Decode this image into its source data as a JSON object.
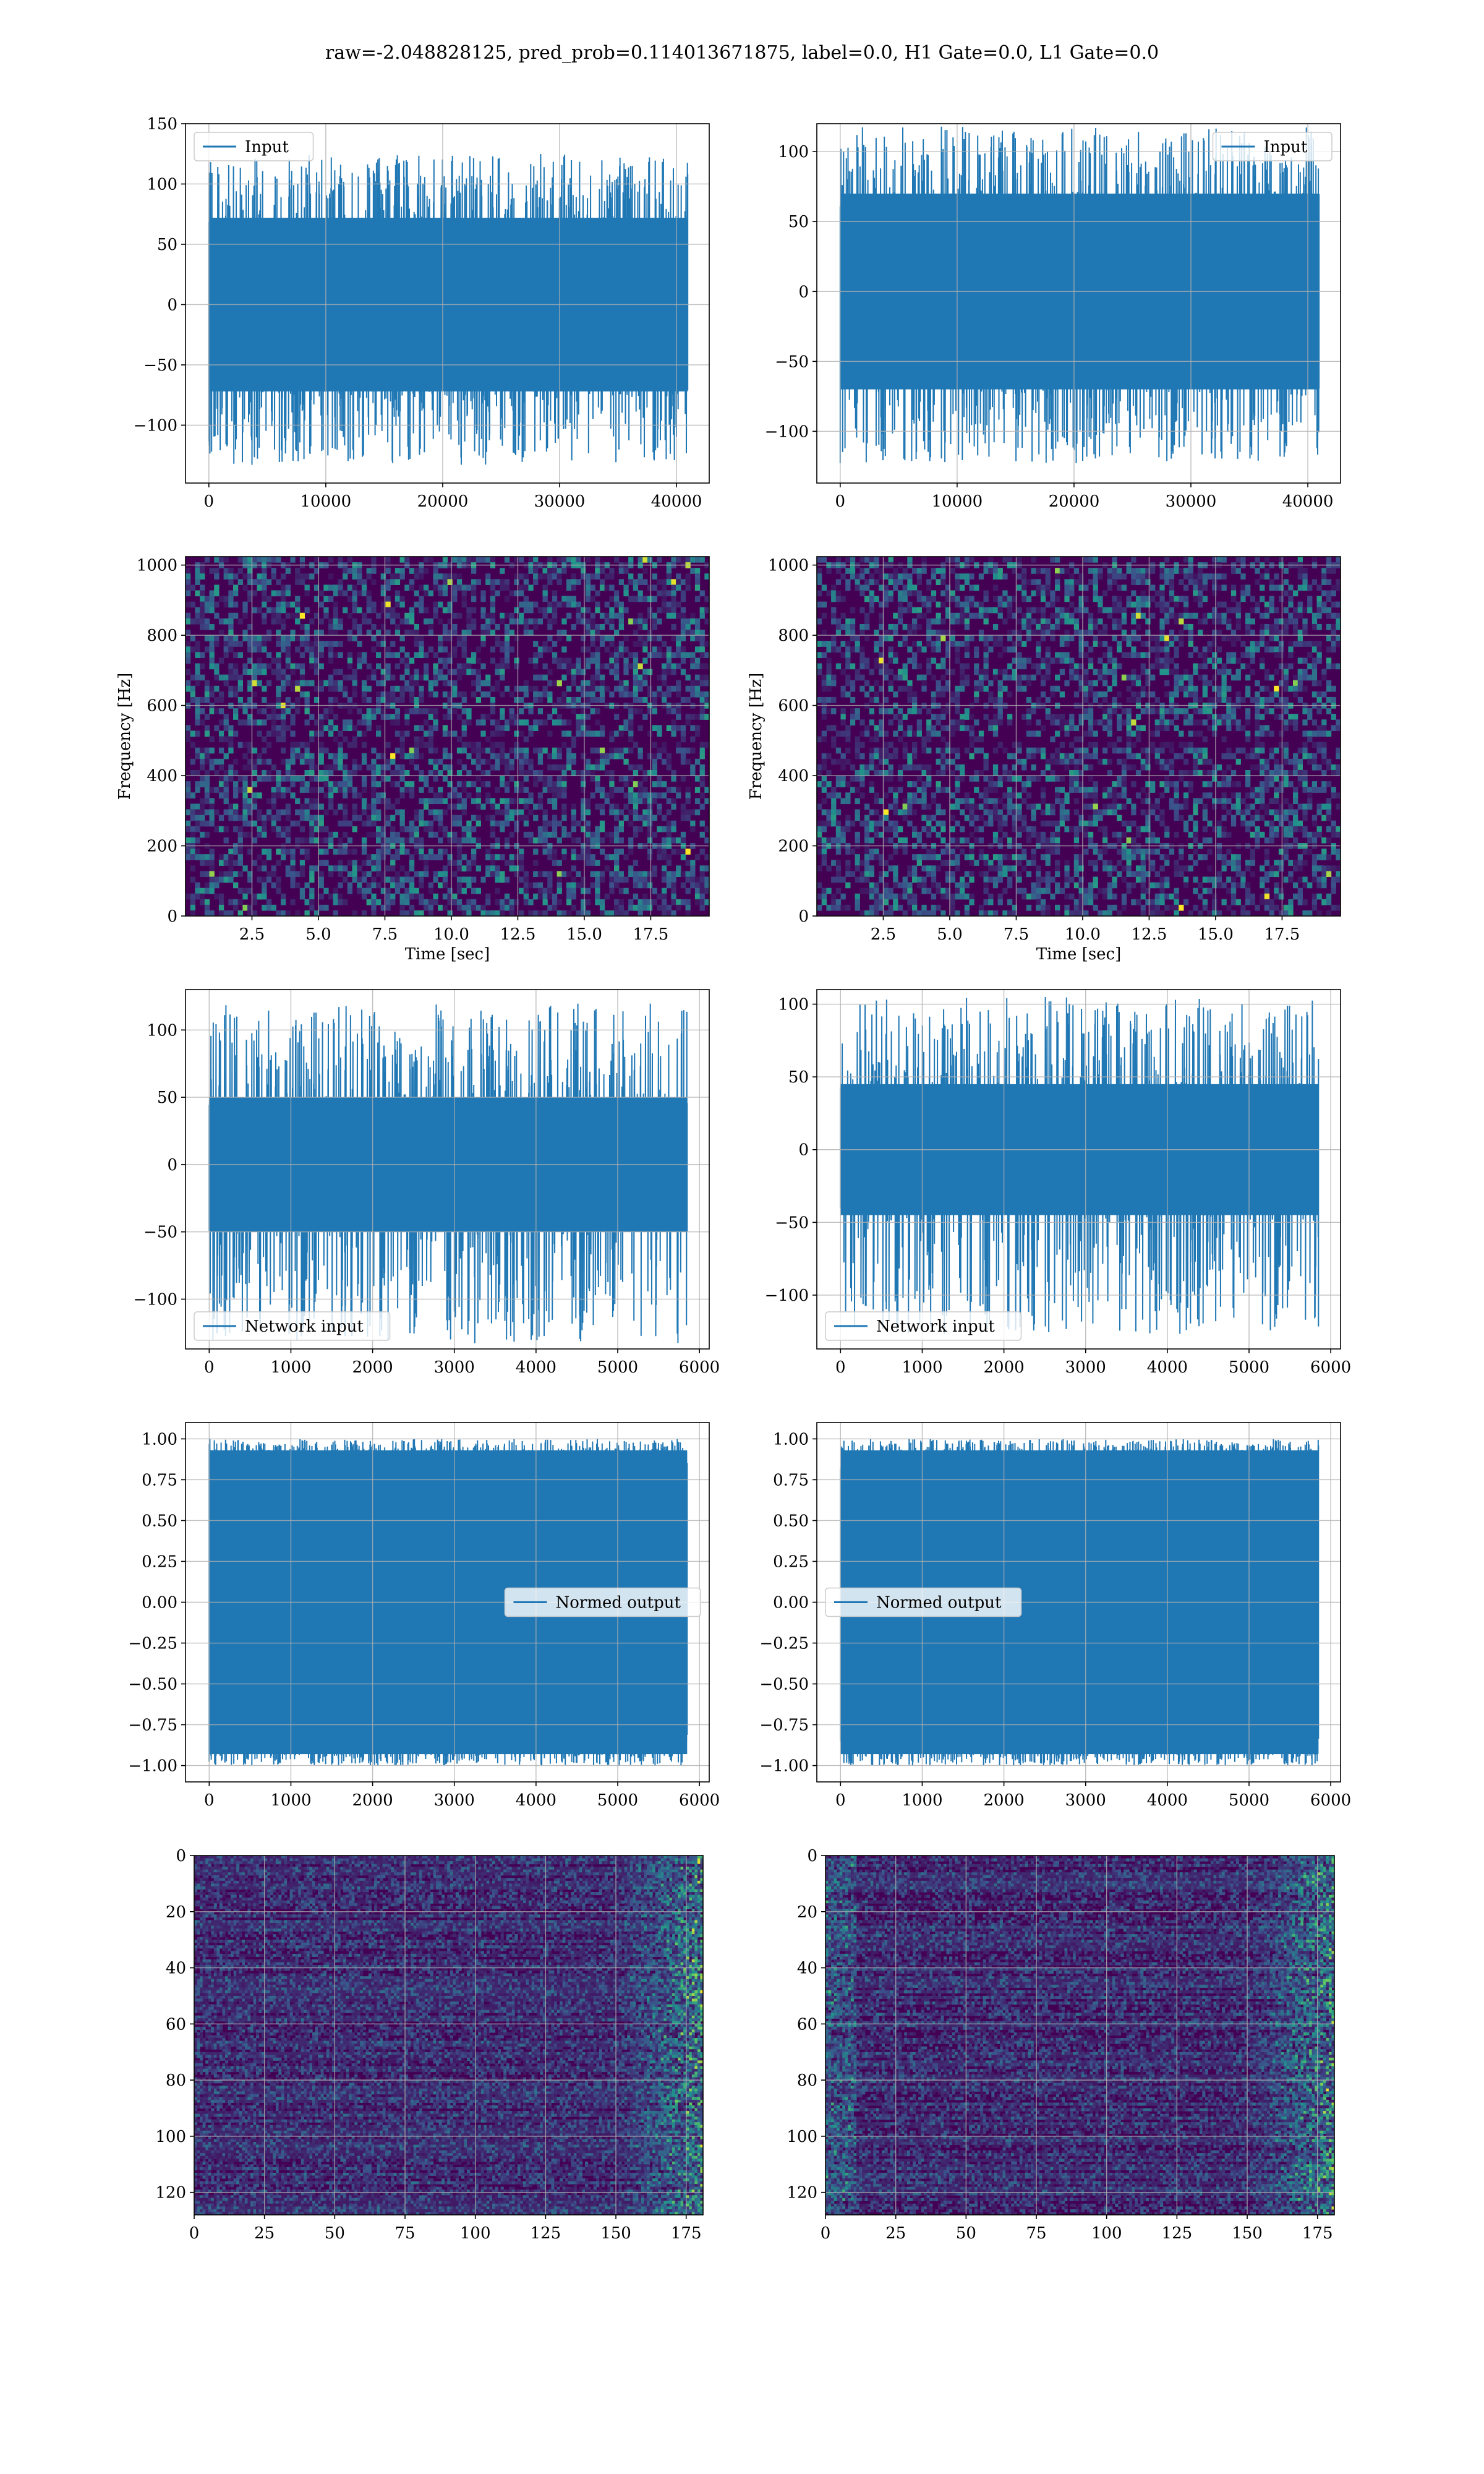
{
  "title": "raw=-2.048828125, pred_prob=0.114013671875, label=0.0, H1 Gate=0.0, L1 Gate=0.0",
  "colors": {
    "series": "#1f77b4",
    "grid": "#b0b0b0",
    "viridis_low": "#440154",
    "viridis_mid": "#21908d",
    "viridis_high": "#fde725"
  },
  "chart_data": [
    {
      "id": "input-left",
      "type": "line",
      "legend": "Input",
      "legend_loc": "upper left",
      "xlim": [
        -2000,
        42800
      ],
      "ylim": [
        -148,
        150
      ],
      "xticks": [
        0,
        10000,
        20000,
        30000,
        40000
      ],
      "yticks": [
        -100,
        -50,
        0,
        50,
        100,
        150
      ],
      "x_range": [
        0,
        40960
      ],
      "envelope": {
        "core": 72,
        "spike_max": 125,
        "spike_min": -133
      },
      "xlabel": "",
      "ylabel": "",
      "grid": true
    },
    {
      "id": "input-right",
      "type": "line",
      "legend": "Input",
      "legend_loc": "upper right",
      "xlim": [
        -2000,
        42800
      ],
      "ylim": [
        -137,
        120
      ],
      "xticks": [
        0,
        10000,
        20000,
        30000,
        40000
      ],
      "yticks": [
        -100,
        -50,
        0,
        50,
        100
      ],
      "x_range": [
        0,
        40960
      ],
      "envelope": {
        "core": 70,
        "spike_max": 118,
        "spike_min": -123
      },
      "xlabel": "",
      "ylabel": "",
      "grid": true
    },
    {
      "id": "spectrogram-left",
      "type": "heatmap",
      "colormap": "viridis",
      "xlim": [
        0,
        19.7
      ],
      "ylim": [
        0,
        1024
      ],
      "xticks": [
        2.5,
        5.0,
        7.5,
        10.0,
        12.5,
        15.0,
        17.5
      ],
      "yticks": [
        0,
        200,
        400,
        600,
        800,
        1000
      ],
      "xlabel": "Time [sec]",
      "ylabel": "Frequency [Hz]",
      "grid": true
    },
    {
      "id": "spectrogram-right",
      "type": "heatmap",
      "colormap": "viridis",
      "xlim": [
        0,
        19.7
      ],
      "ylim": [
        0,
        1024
      ],
      "xticks": [
        2.5,
        5.0,
        7.5,
        10.0,
        12.5,
        15.0,
        17.5
      ],
      "yticks": [
        0,
        200,
        400,
        600,
        800,
        1000
      ],
      "xlabel": "Time [sec]",
      "ylabel": "Frequency [Hz]",
      "grid": true
    },
    {
      "id": "network-input-left",
      "type": "line",
      "legend": "Network input",
      "legend_loc": "lower left",
      "xlim": [
        -290,
        6120
      ],
      "ylim": [
        -137,
        130
      ],
      "xticks": [
        0,
        1000,
        2000,
        3000,
        4000,
        5000,
        6000
      ],
      "yticks": [
        -100,
        -50,
        0,
        50,
        100
      ],
      "x_range": [
        0,
        5850
      ],
      "envelope": {
        "core": 50,
        "spike_max": 120,
        "spike_min": -133
      },
      "xlabel": "",
      "ylabel": "",
      "grid": true
    },
    {
      "id": "network-input-right",
      "type": "line",
      "legend": "Network input",
      "legend_loc": "lower left",
      "xlim": [
        -290,
        6120
      ],
      "ylim": [
        -137,
        110
      ],
      "xticks": [
        0,
        1000,
        2000,
        3000,
        4000,
        5000,
        6000
      ],
      "yticks": [
        -100,
        -50,
        0,
        50,
        100
      ],
      "x_range": [
        0,
        5850
      ],
      "envelope": {
        "core": 45,
        "spike_max": 105,
        "spike_min": -127
      },
      "xlabel": "",
      "ylabel": "",
      "grid": true
    },
    {
      "id": "normed-output-left",
      "type": "line",
      "legend": "Normed output",
      "legend_loc": "center right",
      "xlim": [
        -290,
        6120
      ],
      "ylim": [
        -1.1,
        1.1
      ],
      "xticks": [
        0,
        1000,
        2000,
        3000,
        4000,
        5000,
        6000
      ],
      "yticks": [
        -1.0,
        -0.75,
        -0.5,
        -0.25,
        0.0,
        0.25,
        0.5,
        0.75,
        1.0
      ],
      "x_range": [
        0,
        5850
      ],
      "envelope": {
        "core": 0.93,
        "spike_max": 1.0,
        "spike_min": -1.0
      },
      "xlabel": "",
      "ylabel": "",
      "grid": true
    },
    {
      "id": "normed-output-right",
      "type": "line",
      "legend": "Normed output",
      "legend_loc": "center left",
      "xlim": [
        -290,
        6120
      ],
      "ylim": [
        -1.1,
        1.1
      ],
      "xticks": [
        0,
        1000,
        2000,
        3000,
        4000,
        5000,
        6000
      ],
      "yticks": [
        -1.0,
        -0.75,
        -0.5,
        -0.25,
        0.0,
        0.25,
        0.5,
        0.75,
        1.0
      ],
      "x_range": [
        0,
        5850
      ],
      "envelope": {
        "core": 0.93,
        "spike_max": 1.0,
        "spike_min": -1.0
      },
      "xlabel": "",
      "ylabel": "",
      "grid": true
    },
    {
      "id": "feature-map-left",
      "type": "heatmap",
      "colormap": "viridis",
      "xlim": [
        0,
        181
      ],
      "ylim": [
        128,
        0
      ],
      "xticks": [
        0,
        25,
        50,
        75,
        100,
        125,
        150,
        175
      ],
      "yticks": [
        0,
        20,
        40,
        60,
        80,
        100,
        120
      ],
      "xlabel": "",
      "ylabel": "",
      "grid": true
    },
    {
      "id": "feature-map-right",
      "type": "heatmap",
      "colormap": "viridis",
      "xlim": [
        0,
        181
      ],
      "ylim": [
        128,
        0
      ],
      "xticks": [
        0,
        25,
        50,
        75,
        100,
        125,
        150,
        175
      ],
      "yticks": [
        0,
        20,
        40,
        60,
        80,
        100,
        120
      ],
      "xlabel": "",
      "ylabel": "",
      "grid": true
    }
  ]
}
